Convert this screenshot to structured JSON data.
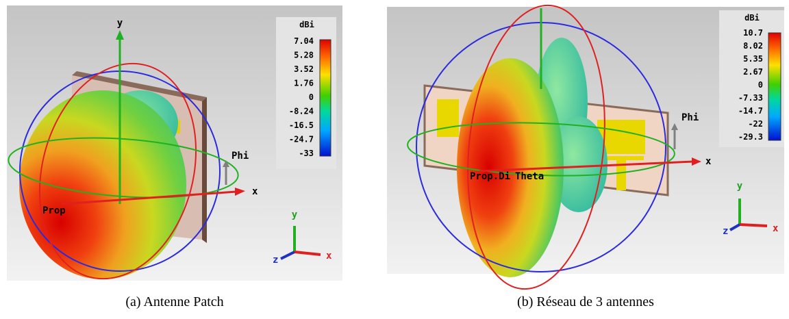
{
  "panels": [
    {
      "caption": "(a) Antenne Patch",
      "colorbar": {
        "unit": "dBi",
        "ticks": [
          "7.04",
          "5.28",
          "3.52",
          "1.76",
          "0",
          "-8.24",
          "-16.5",
          "-24.7",
          "-33"
        ]
      },
      "axes": {
        "y": "y",
        "x": "x",
        "phi": "Phi",
        "prop": "Prop"
      },
      "triad": {
        "y": "y",
        "z": "z",
        "x": "x"
      }
    },
    {
      "caption": "(b) Réseau de 3 antennes",
      "colorbar": {
        "unit": "dBi",
        "ticks": [
          "10.7",
          "8.02",
          "5.35",
          "2.67",
          "0",
          "-7.33",
          "-14.7",
          "-22",
          "-29.3"
        ]
      },
      "axes": {
        "y": "y",
        "x": "x",
        "phi": "Phi",
        "prop": "Prop.Di",
        "theta": "Theta"
      },
      "triad": {
        "y": "y",
        "z": "z",
        "x": "x"
      }
    }
  ]
}
